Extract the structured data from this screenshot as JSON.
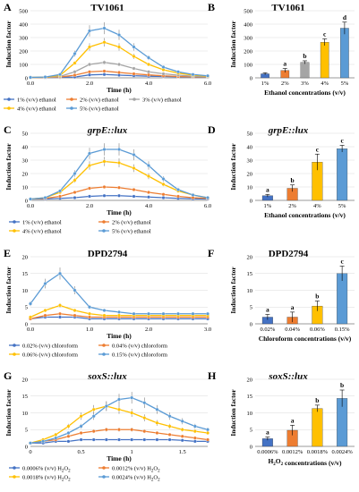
{
  "chart_data": [
    {
      "panel": "A",
      "title": "TV1061",
      "type": "line",
      "xlabel": "Time (h)",
      "ylabel": "Induction factor",
      "xlim": [
        0,
        6
      ],
      "ylim": [
        0,
        500
      ],
      "xticks": [
        "0.0",
        "2.0",
        "4.0",
        "6.0"
      ],
      "yticks": [
        "0",
        "100",
        "200",
        "300",
        "400",
        "500"
      ],
      "series": [
        {
          "name": "1% (v/v) ethanol",
          "color": "#4472c4",
          "x": [
            0,
            0.5,
            1,
            1.5,
            2,
            2.5,
            3,
            3.5,
            4,
            4.5,
            5,
            5.5,
            6
          ],
          "values": [
            2,
            2,
            4,
            6,
            22,
            25,
            20,
            16,
            12,
            10,
            8,
            6,
            5
          ]
        },
        {
          "name": "2% (v/v) ethanol",
          "color": "#ed7d31",
          "x": [
            0,
            0.5,
            1,
            1.5,
            2,
            2.5,
            3,
            3.5,
            4,
            4.5,
            5,
            5.5,
            6
          ],
          "values": [
            2,
            3,
            6,
            20,
            45,
            50,
            40,
            30,
            22,
            15,
            10,
            8,
            6
          ]
        },
        {
          "name": "3% (v/v) ethanol",
          "color": "#a5a5a5",
          "x": [
            0,
            0.5,
            1,
            1.5,
            2,
            2.5,
            3,
            3.5,
            4,
            4.5,
            5,
            5.5,
            6
          ],
          "values": [
            3,
            4,
            10,
            45,
            100,
            115,
            100,
            70,
            45,
            30,
            20,
            12,
            8
          ]
        },
        {
          "name": "4% (v/v) ethanol",
          "color": "#ffc000",
          "x": [
            0,
            0.5,
            1,
            1.5,
            2,
            2.5,
            3,
            3.5,
            4,
            4.5,
            5,
            5.5,
            6
          ],
          "values": [
            3,
            5,
            18,
            110,
            230,
            265,
            230,
            160,
            100,
            60,
            35,
            20,
            12
          ]
        },
        {
          "name": "5% (v/v) ethanol",
          "color": "#5b9bd5",
          "x": [
            0,
            0.5,
            1,
            1.5,
            2,
            2.5,
            3,
            3.5,
            4,
            4.5,
            5,
            5.5,
            6
          ],
          "values": [
            3,
            6,
            25,
            180,
            350,
            370,
            320,
            230,
            150,
            80,
            45,
            25,
            15
          ]
        }
      ]
    },
    {
      "panel": "B",
      "title": "TV1061",
      "type": "bar",
      "xlabel": "Ethanol concentrations (v/v)",
      "ylabel": "Induction factor",
      "ylim": [
        0,
        500
      ],
      "yticks": [
        "0",
        "100",
        "200",
        "300",
        "400",
        "500"
      ],
      "categories": [
        "1%",
        "2%",
        "3%",
        "4%",
        "5%"
      ],
      "values": [
        30,
        55,
        115,
        265,
        370
      ],
      "errors": [
        8,
        15,
        12,
        25,
        45
      ],
      "letters": [
        "",
        "a",
        "b",
        "c",
        "d"
      ],
      "colors": [
        "#4472c4",
        "#ed7d31",
        "#a5a5a5",
        "#ffc000",
        "#5b9bd5"
      ]
    },
    {
      "panel": "C",
      "title": "grpE::lux",
      "type": "line",
      "xlabel": "Time (h)",
      "ylabel": "Induction factor",
      "xlim": [
        0,
        6
      ],
      "ylim": [
        0,
        50
      ],
      "xticks": [
        "0.0",
        "2.0",
        "4.0",
        "6.0"
      ],
      "yticks": [
        "0",
        "10",
        "20",
        "30",
        "40",
        "50"
      ],
      "series": [
        {
          "name": "1% (v/v) ethanol",
          "color": "#4472c4",
          "x": [
            0,
            0.5,
            1,
            1.5,
            2,
            2.5,
            3,
            3.5,
            4,
            4.5,
            5,
            5.5,
            6
          ],
          "values": [
            1,
            1,
            1.5,
            2,
            3,
            3.5,
            3.5,
            3,
            2.5,
            2,
            1.5,
            1.2,
            1
          ]
        },
        {
          "name": "2% (v/v) ethanol",
          "color": "#ed7d31",
          "x": [
            0,
            0.5,
            1,
            1.5,
            2,
            2.5,
            3,
            3.5,
            4,
            4.5,
            5,
            5.5,
            6
          ],
          "values": [
            1,
            1.5,
            3,
            6,
            9,
            10,
            9.5,
            8,
            6,
            4.5,
            3,
            2,
            1.5
          ]
        },
        {
          "name": "4% (v/v) ethanol",
          "color": "#ffc000",
          "x": [
            0,
            0.5,
            1,
            1.5,
            2,
            2.5,
            3,
            3.5,
            4,
            4.5,
            5,
            5.5,
            6
          ],
          "values": [
            1,
            2,
            6,
            15,
            26,
            29,
            28,
            24,
            18,
            12,
            7,
            4,
            2
          ]
        },
        {
          "name": "5% (v/v) ethanol",
          "color": "#5b9bd5",
          "x": [
            0,
            0.5,
            1,
            1.5,
            2,
            2.5,
            3,
            3.5,
            4,
            4.5,
            5,
            5.5,
            6
          ],
          "values": [
            1,
            2,
            7,
            20,
            35,
            38,
            38,
            34,
            26,
            16,
            8,
            4,
            2
          ]
        }
      ]
    },
    {
      "panel": "D",
      "title": "grpE::lux",
      "type": "bar",
      "xlabel": "Ethanol concentrations (v/v)",
      "ylabel": "Induction factor",
      "ylim": [
        0,
        50
      ],
      "yticks": [
        "0",
        "10",
        "20",
        "30",
        "40",
        "50"
      ],
      "categories": [
        "1%",
        "2%",
        "4%",
        "5%"
      ],
      "values": [
        3.5,
        9,
        28.5,
        38.5
      ],
      "errors": [
        1,
        2.5,
        6,
        2.5
      ],
      "letters": [
        "a",
        "b",
        "c",
        "c"
      ],
      "colors": [
        "#4472c4",
        "#ed7d31",
        "#ffc000",
        "#5b9bd5"
      ]
    },
    {
      "panel": "E",
      "title": "DPD2794",
      "type": "line",
      "xlabel": "Time (h)",
      "ylabel": "Induction factor",
      "xlim": [
        0,
        3
      ],
      "ylim": [
        0,
        20
      ],
      "xticks": [
        "0.0",
        "1.0",
        "2.0",
        "3.0"
      ],
      "yticks": [
        "0",
        "5",
        "10",
        "15",
        "20"
      ],
      "series": [
        {
          "name": "0.02% (v/v) chloroform",
          "color": "#4472c4",
          "x": [
            0,
            0.25,
            0.5,
            0.75,
            1,
            1.25,
            1.5,
            1.75,
            2,
            2.25,
            2.5,
            2.75,
            3
          ],
          "values": [
            1.5,
            2,
            2,
            2,
            1.5,
            1.5,
            1.5,
            1.5,
            1.5,
            1.5,
            1.5,
            1.5,
            1.5
          ]
        },
        {
          "name": "0.04% (v/v) chloroform",
          "color": "#ed7d31",
          "x": [
            0,
            0.25,
            0.5,
            0.75,
            1,
            1.25,
            1.5,
            1.75,
            2,
            2.25,
            2.5,
            2.75,
            3
          ],
          "values": [
            1.5,
            2.5,
            3,
            2.5,
            2,
            2,
            2,
            2,
            2,
            2,
            2,
            2,
            2
          ]
        },
        {
          "name": "0.06% (v/v) chloroform",
          "color": "#ffc000",
          "x": [
            0,
            0.25,
            0.5,
            0.75,
            1,
            1.25,
            1.5,
            1.75,
            2,
            2.25,
            2.5,
            2.75,
            3
          ],
          "values": [
            2,
            4,
            5.5,
            4,
            3,
            2.5,
            2.5,
            2.5,
            2.5,
            2.5,
            2.5,
            2.5,
            2.5
          ]
        },
        {
          "name": "0.15% (v/v) chloroform",
          "color": "#5b9bd5",
          "x": [
            0,
            0.25,
            0.5,
            0.75,
            1,
            1.25,
            1.5,
            1.75,
            2,
            2.25,
            2.5,
            2.75,
            3
          ],
          "values": [
            6,
            12,
            15,
            10,
            5,
            4,
            3.5,
            3,
            3,
            3,
            3,
            3,
            3
          ]
        }
      ]
    },
    {
      "panel": "F",
      "title": "DPD2794",
      "type": "bar",
      "xlabel": "Chloroform concentrations (v/v)",
      "ylabel": "Induction factor",
      "ylim": [
        0,
        20
      ],
      "yticks": [
        "0",
        "5",
        "10",
        "15",
        "20"
      ],
      "categories": [
        "0.02%",
        "0.04%",
        "0.06%",
        "0.15%"
      ],
      "values": [
        2,
        2,
        5.3,
        15
      ],
      "errors": [
        0.8,
        1.5,
        1.5,
        2.2
      ],
      "letters": [
        "a",
        "a",
        "b",
        "c"
      ],
      "colors": [
        "#4472c4",
        "#ed7d31",
        "#ffc000",
        "#5b9bd5"
      ]
    },
    {
      "panel": "G",
      "title": "soxS::lux",
      "type": "line",
      "xlabel": "Time (h)",
      "ylabel": "Induction factor",
      "xlim": [
        0,
        1.75
      ],
      "ylim": [
        0,
        20
      ],
      "xticks": [
        "0",
        "0.5",
        "1",
        "1.5"
      ],
      "yticks": [
        "0",
        "5",
        "10",
        "15",
        "20"
      ],
      "series": [
        {
          "name": "0.0006% (v/v) H2O2",
          "color": "#4472c4",
          "x": [
            0,
            0.125,
            0.25,
            0.375,
            0.5,
            0.625,
            0.75,
            0.875,
            1,
            1.125,
            1.25,
            1.375,
            1.5,
            1.625,
            1.75
          ],
          "values": [
            1,
            1,
            1.5,
            1.5,
            2,
            2,
            2,
            2,
            2,
            2,
            2,
            2,
            1.8,
            1.5,
            1.5
          ]
        },
        {
          "name": "0.0012% (v/v) H2O2",
          "color": "#ed7d31",
          "x": [
            0,
            0.125,
            0.25,
            0.375,
            0.5,
            0.625,
            0.75,
            0.875,
            1,
            1.125,
            1.25,
            1.375,
            1.5,
            1.625,
            1.75
          ],
          "values": [
            1,
            1.5,
            2,
            3,
            4,
            4.5,
            5,
            5,
            5,
            4.5,
            4,
            3.5,
            3,
            2.5,
            2
          ]
        },
        {
          "name": "0.0018% (v/v) H2O2",
          "color": "#ffc000",
          "x": [
            0,
            0.125,
            0.25,
            0.375,
            0.5,
            0.625,
            0.75,
            0.875,
            1,
            1.125,
            1.25,
            1.375,
            1.5,
            1.625,
            1.75
          ],
          "values": [
            1,
            2,
            3.5,
            6,
            9,
            11,
            12,
            11,
            10,
            8.5,
            7,
            6,
            5,
            4.5,
            4
          ]
        },
        {
          "name": "0.0024% (v/v) H2O2",
          "color": "#5b9bd5",
          "x": [
            0,
            0.125,
            0.25,
            0.375,
            0.5,
            0.625,
            0.75,
            0.875,
            1,
            1.125,
            1.25,
            1.375,
            1.5,
            1.625,
            1.75
          ],
          "values": [
            1,
            1.5,
            2.5,
            4,
            6,
            9,
            12,
            14,
            14.5,
            13,
            11,
            9,
            7.5,
            6,
            5
          ]
        }
      ]
    },
    {
      "panel": "H",
      "title": "soxS::lux",
      "type": "bar",
      "xlabel": "H2O2 concentrations (v/v)",
      "ylabel": "Induction factor",
      "ylim": [
        0,
        20
      ],
      "yticks": [
        "0",
        "5",
        "10",
        "15",
        "20"
      ],
      "categories": [
        "0.0006%",
        "0.0012%",
        "0.0018%",
        "0.0024%"
      ],
      "values": [
        2.3,
        4.8,
        11.3,
        14.3
      ],
      "errors": [
        0.5,
        1.5,
        1,
        2.5
      ],
      "letters": [
        "a",
        "a",
        "b",
        "b"
      ],
      "colors": [
        "#4472c4",
        "#ed7d31",
        "#ffc000",
        "#5b9bd5"
      ]
    }
  ]
}
